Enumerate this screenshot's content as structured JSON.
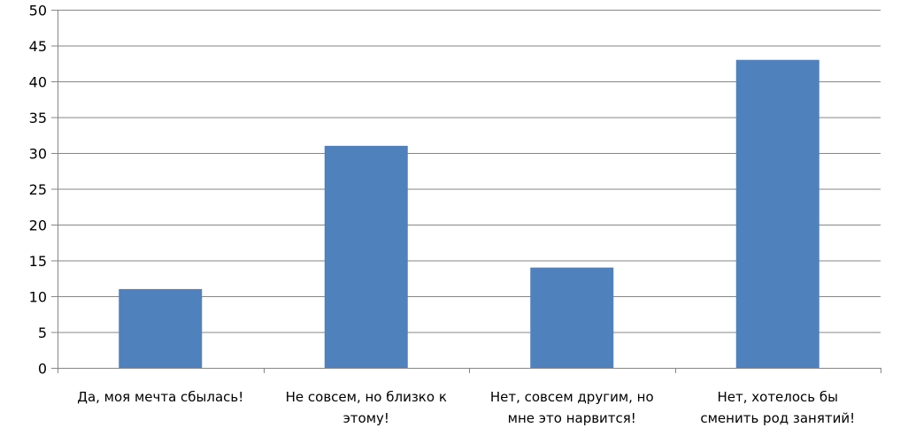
{
  "chart_data": {
    "type": "bar",
    "title": "",
    "xlabel": "",
    "ylabel": "",
    "categories": [
      [
        "Да, моя мечта сбылась!"
      ],
      [
        "Не совсем, но близко к",
        "этому!"
      ],
      [
        "Нет, совсем другим, но",
        "мне это нарвится!"
      ],
      [
        "Нет, хотелось бы",
        "сменить род занятий!"
      ]
    ],
    "values": [
      11,
      31,
      14,
      43
    ],
    "ylim": [
      0,
      50
    ],
    "yticks": [
      0,
      5,
      10,
      15,
      20,
      25,
      30,
      35,
      40,
      45,
      50
    ],
    "grid": true,
    "legend": "none",
    "bar_color": "#4F81BD",
    "grid_color": "#868686"
  }
}
